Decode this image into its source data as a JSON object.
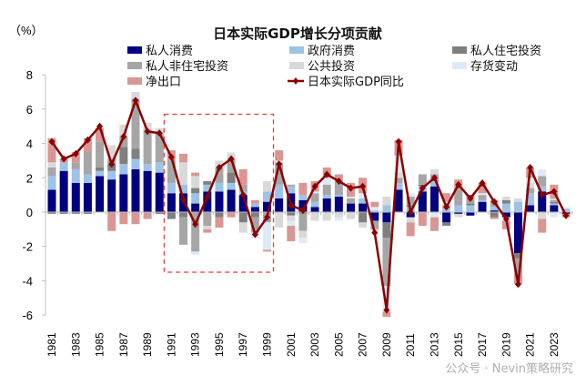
{
  "chart_data": {
    "type": "bar",
    "stacked": true,
    "title": "日本实际GDP增长分项贡献",
    "ylabel": "（%）",
    "xlabel": "",
    "ylim": [
      -6,
      8
    ],
    "yticks": [
      8,
      6,
      4,
      2,
      0,
      -2,
      -4,
      -6
    ],
    "grid": false,
    "legend": "top",
    "categories": [
      1981,
      1982,
      1983,
      1984,
      1985,
      1986,
      1987,
      1988,
      1989,
      1990,
      1991,
      1992,
      1993,
      1994,
      1995,
      1996,
      1997,
      1998,
      1999,
      2000,
      2001,
      2002,
      2003,
      2004,
      2005,
      2006,
      2007,
      2008,
      2009,
      2010,
      2011,
      2012,
      2013,
      2014,
      2015,
      2016,
      2017,
      2018,
      2019,
      2020,
      2021,
      2022,
      2023,
      2024
    ],
    "xtick_labels": [
      "1981",
      "1983",
      "1985",
      "1987",
      "1989",
      "1991",
      "1993",
      "1995",
      "1997",
      "1999",
      "2001",
      "2003",
      "2005",
      "2007",
      "2009",
      "2011",
      "2013",
      "2015",
      "2017",
      "2019",
      "2021",
      "2023"
    ],
    "series": [
      {
        "name": "私人消费",
        "color": "#000080",
        "values": [
          1.3,
          2.4,
          1.7,
          1.7,
          2.1,
          1.9,
          2.2,
          2.5,
          2.4,
          2.3,
          1.1,
          1.1,
          0.5,
          1.2,
          1.2,
          1.3,
          1.0,
          0.3,
          0.6,
          0.8,
          1.1,
          0.7,
          0.3,
          0.8,
          0.9,
          0.5,
          0.5,
          -0.5,
          -0.6,
          1.3,
          -0.3,
          1.2,
          1.5,
          -0.6,
          -0.1,
          -0.2,
          0.6,
          0.1,
          -0.3,
          -2.4,
          0.4,
          1.2,
          0.4,
          -0.1
        ]
      },
      {
        "name": "政府消费",
        "color": "#9dc3e6",
        "values": [
          0.8,
          0.5,
          0.8,
          0.5,
          0.3,
          0.5,
          0.6,
          0.6,
          0.4,
          0.6,
          0.6,
          0.5,
          0.6,
          0.4,
          0.5,
          0.4,
          0.2,
          0.2,
          0.6,
          0.8,
          0.4,
          0.3,
          0.3,
          0.2,
          0.1,
          0.0,
          0.3,
          0.1,
          0.4,
          0.4,
          0.3,
          0.3,
          0.3,
          0.2,
          0.4,
          0.4,
          0.1,
          0.2,
          0.5,
          0.6,
          0.7,
          0.3,
          0.1,
          0.2
        ]
      },
      {
        "name": "私人住宅投资",
        "color": "#7f7f7f",
        "values": [
          -0.1,
          -0.1,
          -0.1,
          -0.1,
          0.2,
          0.4,
          1.0,
          0.6,
          0.0,
          -0.1,
          -0.4,
          -0.3,
          0.3,
          0.2,
          -0.3,
          0.6,
          -0.6,
          -0.3,
          0.0,
          0.0,
          -0.2,
          -0.1,
          0.0,
          0.0,
          0.0,
          0.0,
          -0.6,
          0.0,
          -0.9,
          0.0,
          0.1,
          0.1,
          0.1,
          -0.2,
          0.0,
          0.1,
          0.0,
          -0.3,
          0.2,
          -0.3,
          0.0,
          0.0,
          0.1,
          0.0
        ]
      },
      {
        "name": "私人非住宅投资",
        "color": "#a6a6a6",
        "values": [
          0.5,
          0.0,
          0.4,
          1.3,
          1.5,
          0.3,
          0.6,
          2.9,
          2.0,
          1.7,
          1.3,
          -1.6,
          -2.3,
          -0.8,
          0.9,
          0.8,
          0.4,
          -0.9,
          -0.6,
          1.3,
          0.1,
          -1.0,
          0.5,
          0.6,
          0.9,
          0.3,
          0.0,
          -0.5,
          -2.8,
          0.3,
          0.5,
          0.6,
          0.3,
          0.2,
          0.9,
          0.2,
          0.3,
          0.4,
          0.0,
          -0.9,
          0.3,
          0.6,
          0.1,
          0.0
        ]
      },
      {
        "name": "公共投资",
        "color": "#d9d9d9",
        "values": [
          0.3,
          0.0,
          0.0,
          0.0,
          0.0,
          0.8,
          0.7,
          0.4,
          0.4,
          0.3,
          0.0,
          1.3,
          0.7,
          -0.2,
          0.4,
          0.3,
          -0.6,
          0.0,
          0.6,
          -0.9,
          -0.3,
          -0.4,
          -0.5,
          -0.5,
          -0.3,
          -0.4,
          -0.3,
          -0.1,
          0.5,
          0.3,
          -0.3,
          0.0,
          0.3,
          0.1,
          -0.2,
          0.0,
          0.0,
          0.0,
          0.2,
          0.2,
          0.3,
          -0.4,
          0.1,
          0.0
        ]
      },
      {
        "name": "存货变动",
        "color": "#deebf7",
        "values": [
          0.0,
          0.0,
          0.0,
          0.0,
          0.0,
          0.0,
          0.0,
          0.0,
          0.0,
          0.0,
          0.0,
          0.0,
          -0.2,
          0.0,
          0.0,
          0.1,
          0.0,
          -0.3,
          -1.6,
          0.1,
          -0.3,
          -0.3,
          0.1,
          0.4,
          -0.2,
          0.1,
          0.3,
          0.2,
          -1.5,
          1.0,
          0.2,
          0.0,
          -0.3,
          0.1,
          0.0,
          0.0,
          0.1,
          0.1,
          -0.2,
          0.0,
          0.3,
          0.4,
          -0.3,
          0.1
        ]
      },
      {
        "name": "净出口",
        "color": "#d99694",
        "values": [
          1.4,
          0.2,
          0.6,
          0.8,
          0.8,
          -1.1,
          -0.7,
          -0.7,
          -0.4,
          0.0,
          0.6,
          0.5,
          0.2,
          -0.2,
          -0.6,
          -0.3,
          0.9,
          0.2,
          -0.1,
          0.6,
          -0.9,
          0.7,
          0.6,
          0.6,
          0.3,
          0.8,
          0.9,
          0.3,
          -0.3,
          0.9,
          -0.8,
          -0.8,
          -0.8,
          0.5,
          0.6,
          0.3,
          0.6,
          -0.1,
          -0.5,
          -0.6,
          0.6,
          -0.8,
          0.8,
          -0.2
        ]
      }
    ],
    "line": {
      "name": "日本实际GDP同比",
      "color": "#8b0000",
      "values": [
        4.1,
        3.1,
        3.4,
        4.2,
        5.0,
        2.8,
        4.4,
        6.5,
        4.7,
        4.6,
        3.2,
        0.7,
        -0.7,
        0.9,
        2.6,
        3.1,
        1.0,
        -1.3,
        -0.3,
        2.8,
        0.4,
        0.1,
        1.5,
        2.2,
        1.8,
        1.4,
        1.5,
        -1.2,
        -5.7,
        4.1,
        0.0,
        1.4,
        2.0,
        0.3,
        1.6,
        0.8,
        1.7,
        0.6,
        -0.4,
        -4.2,
        2.6,
        1.0,
        1.2,
        -0.2
      ]
    },
    "highlight": {
      "years": [
        1991,
        1999
      ],
      "y_range": [
        -3.5,
        5.7
      ],
      "color": "#ff3333",
      "style": "dashed"
    }
  },
  "watermark": "公众号 · Nevin策略研究"
}
